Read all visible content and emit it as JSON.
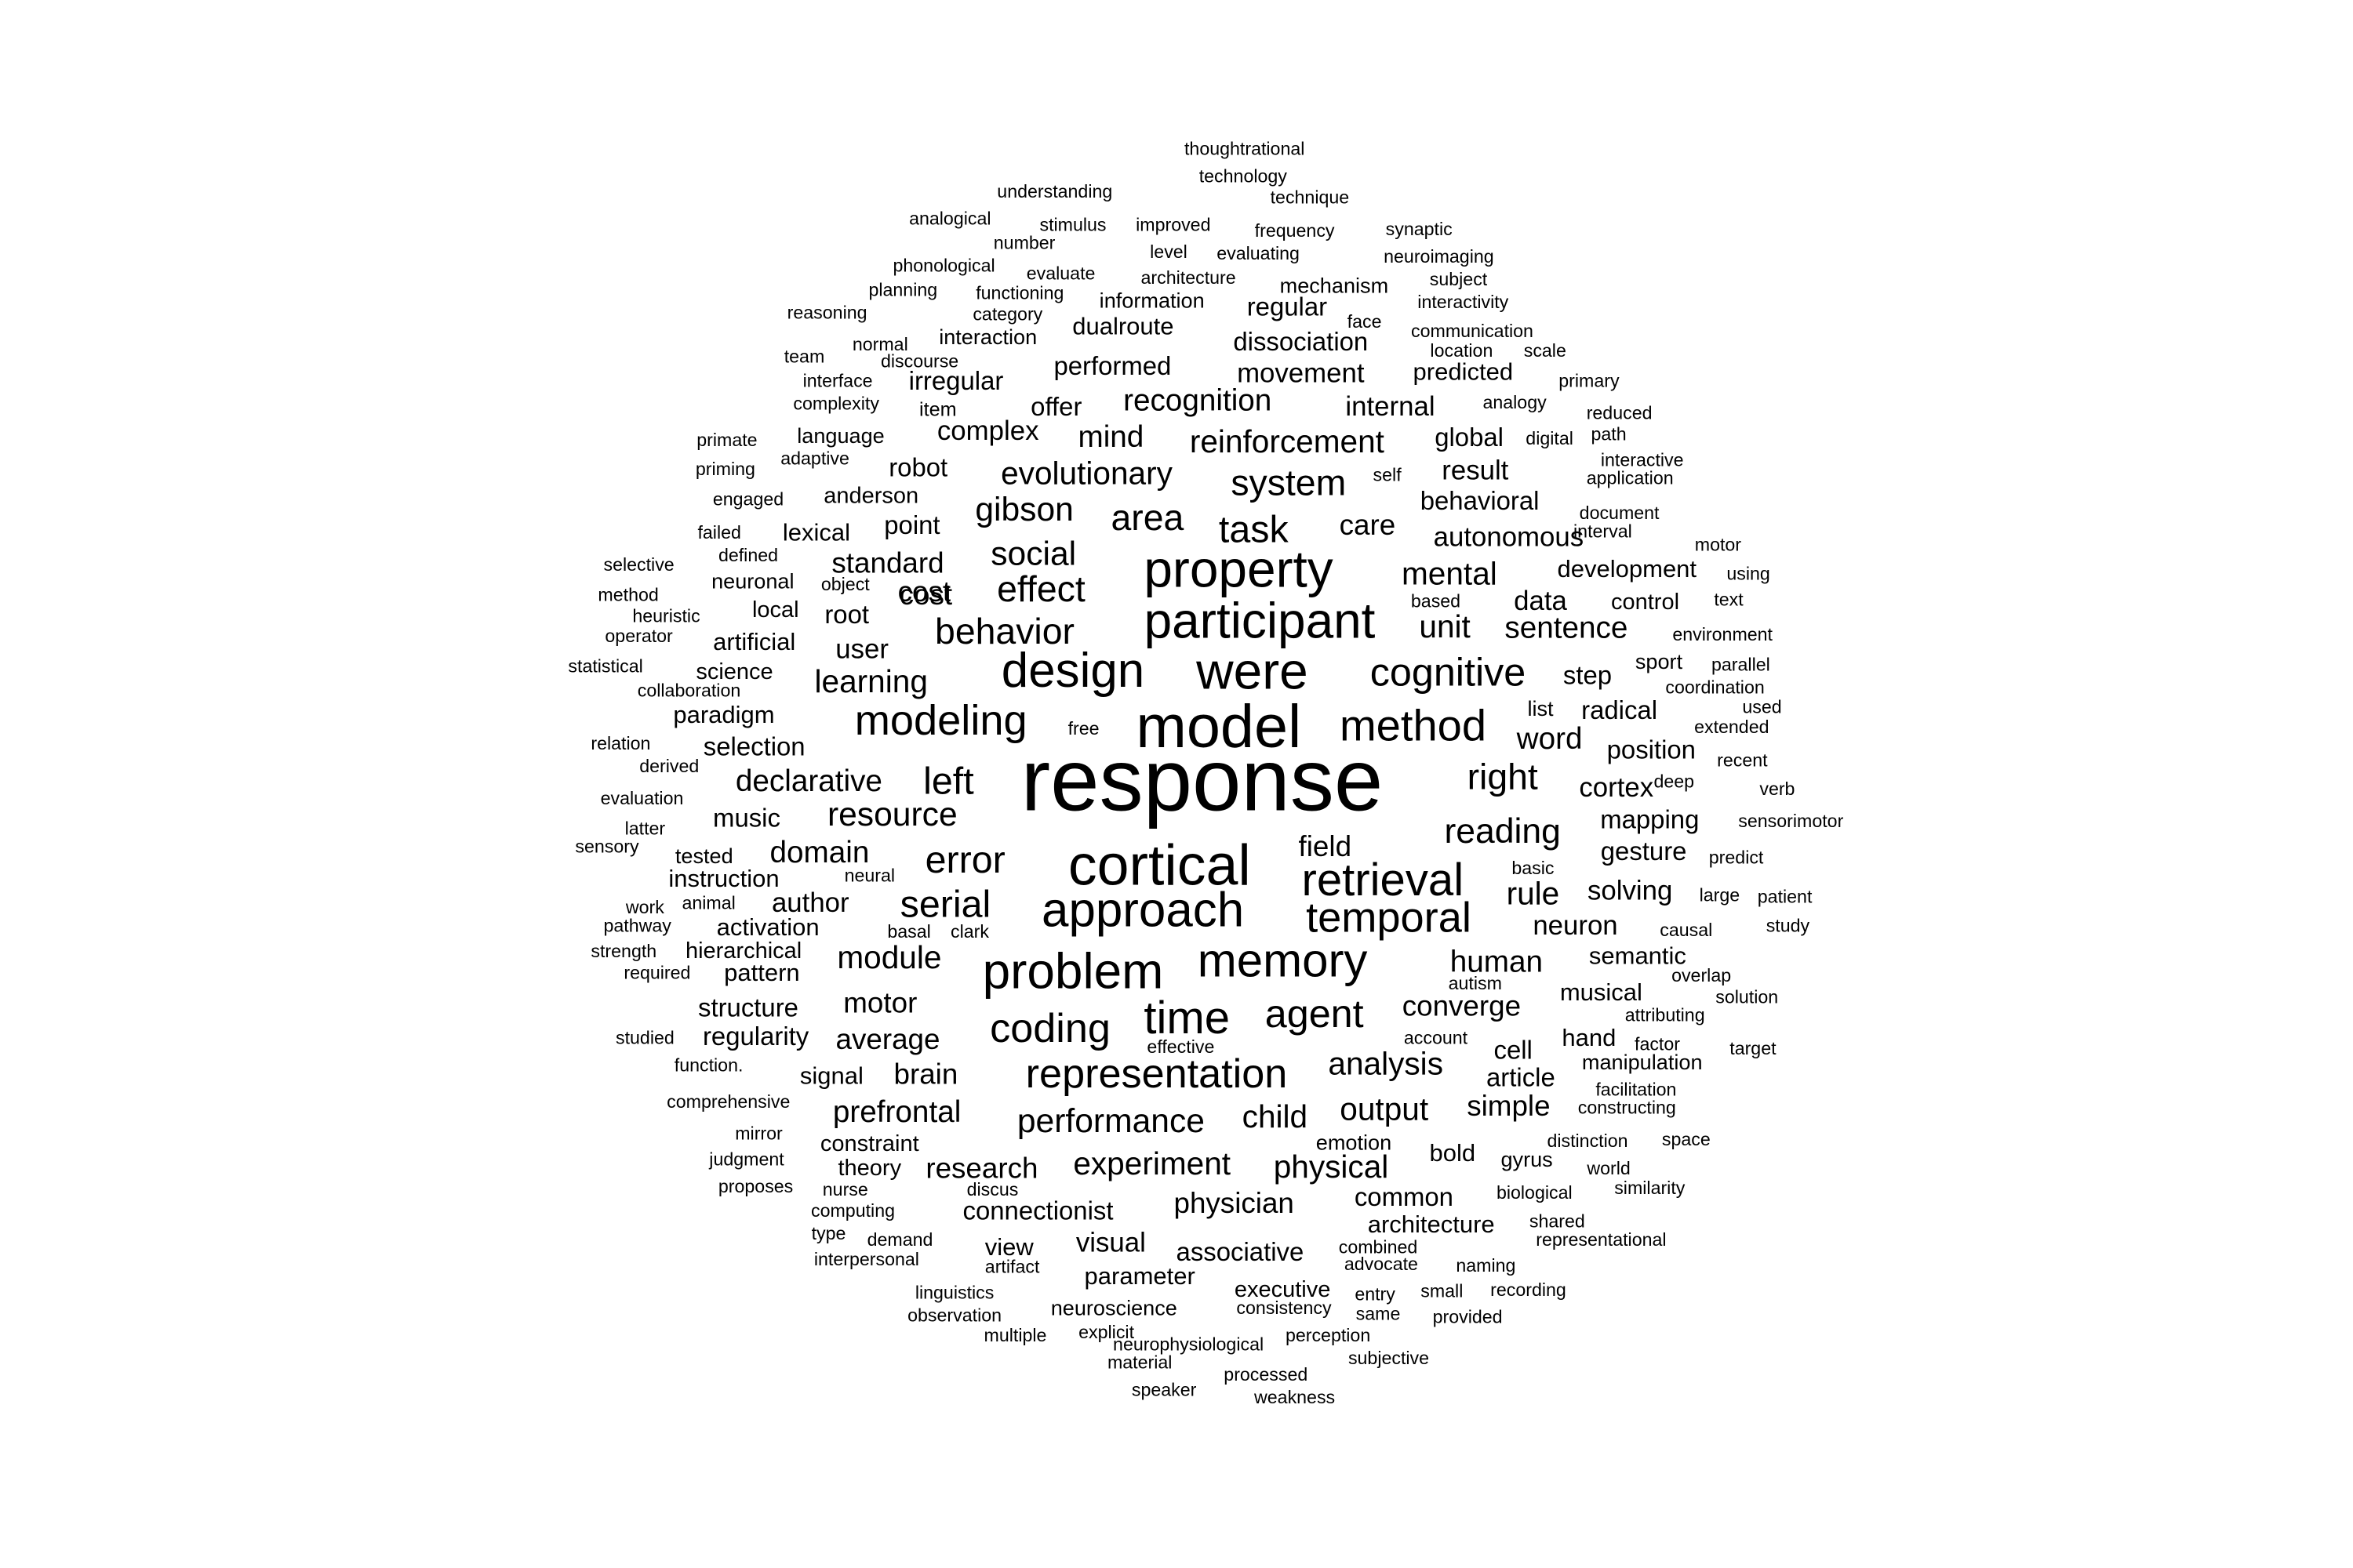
{
  "words": [
    "response",
    "model",
    "cortical",
    "participant",
    "property",
    "were",
    "design",
    "problem",
    "memory",
    "approach",
    "retrieval",
    "temporal",
    "modeling",
    "method",
    "cognitive",
    "time",
    "agent",
    "coding",
    "representation",
    "behavior",
    "effect",
    "social",
    "task",
    "area",
    "system",
    "gibson",
    "evolutionary",
    "reinforcement",
    "recognition",
    "performed",
    "dissociation",
    "movement",
    "internal",
    "predicted",
    "regular",
    "dualroute",
    "irregular",
    "mind",
    "complex",
    "offer",
    "global",
    "result",
    "behavioral",
    "care",
    "autonomous",
    "mental",
    "development",
    "unit",
    "sentence",
    "data",
    "control",
    "step",
    "radical",
    "list",
    "word",
    "position",
    "right",
    "cortex",
    "reading",
    "mapping",
    "gesture",
    "rule",
    "solving",
    "neuron",
    "human",
    "semantic",
    "converge",
    "musical",
    "hand",
    "cell",
    "article",
    "manipulation",
    "simple",
    "analysis",
    "output",
    "performance",
    "child",
    "experiment",
    "physical",
    "physician",
    "architecture",
    "common",
    "emotion",
    "bold",
    "gyrus",
    "associative",
    "executive",
    "neuroscience",
    "connectionist",
    "visual",
    "parameter",
    "view",
    "research",
    "prefrontal",
    "brain",
    "signal",
    "average",
    "motor",
    "module",
    "pattern",
    "activation",
    "author",
    "serial",
    "error",
    "domain",
    "instruction",
    "tested",
    "resource",
    "declarative",
    "selection",
    "paradigm",
    "learning",
    "user",
    "science",
    "artificial",
    "local",
    "root",
    "cost",
    "standard",
    "neuronal",
    "lexical",
    "point",
    "anderson",
    "robot",
    "language",
    "complexity",
    "item",
    "interface",
    "team",
    "normal",
    "discourse",
    "interaction",
    "reasoning",
    "category",
    "planning",
    "functioning",
    "phonological",
    "evaluate",
    "number",
    "stimulus",
    "improved",
    "analogical",
    "understanding",
    "thoughtrational",
    "technology",
    "technique",
    "frequency",
    "synaptic",
    "level",
    "evaluating",
    "neuroimaging",
    "architecture",
    "mechanism",
    "subject",
    "information",
    "face",
    "communication",
    "interactivity",
    "location",
    "scale",
    "primary",
    "analogy",
    "reduced",
    "digital",
    "path",
    "interactive",
    "application",
    "self",
    "document",
    "interval",
    "motor",
    "using",
    "text",
    "environment",
    "sport",
    "parallel",
    "coordination",
    "used",
    "extended",
    "recent",
    "deep",
    "verb",
    "sensorimotor",
    "predict",
    "large",
    "patient",
    "causal",
    "study",
    "overlap",
    "solution",
    "attributing",
    "factor",
    "target",
    "facilitation",
    "constructing",
    "distinction",
    "space",
    "world",
    "similarity",
    "biological",
    "shared",
    "representational",
    "naming",
    "small",
    "recording",
    "entry",
    "same",
    "provided",
    "consistency",
    "perception",
    "subjective",
    "processed",
    "weakness",
    "speaker",
    "neurophysiological",
    "material",
    "explicit",
    "multiple",
    "observation",
    "linguistics",
    "artifact",
    "combined",
    "advocate",
    "interpersonal",
    "demand",
    "type",
    "computing",
    "nurse",
    "discus",
    "proposes",
    "judgment",
    "mirror",
    "comprehensive",
    "theory",
    "constraint",
    "function.",
    "studied",
    "regularity",
    "structure",
    "required",
    "strength",
    "hierarchical",
    "pathway",
    "work",
    "animal",
    "basal",
    "clark",
    "neural",
    "sensory",
    "latter",
    "evaluation",
    "derived",
    "relation",
    "free",
    "collaboration",
    "statistical",
    "operator",
    "heuristic",
    "method",
    "selective",
    "defined",
    "object",
    "failed",
    "engaged",
    "priming",
    "primate",
    "adaptive",
    "left",
    "field",
    "account",
    "effective",
    "autism",
    "basic",
    "based",
    "music",
    "cost"
  ]
}
